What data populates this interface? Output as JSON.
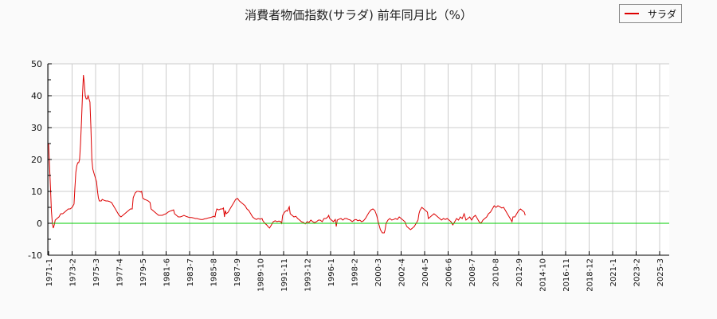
{
  "chart_data": {
    "type": "line",
    "title": "消費者物価指数(サラダ) 前年同月比（%）",
    "xlabel": "",
    "ylabel": "",
    "ylim": [
      -10,
      50
    ],
    "yticks": [
      50,
      40,
      30,
      20,
      10,
      0,
      -10
    ],
    "grid": true,
    "legend_position": "top-right",
    "x_start": "1971-1",
    "x_tick_labels": [
      "1971-1",
      "1973-2",
      "1975-3",
      "1977-4",
      "1979-5",
      "1981-6",
      "1983-7",
      "1985-8",
      "1987-9",
      "1989-10",
      "1991-11",
      "1993-12",
      "1996-1",
      "1998-2",
      "2000-3",
      "2002-4",
      "2004-5",
      "2006-6",
      "2008-7",
      "2010-8",
      "2012-9",
      "2014-10",
      "2016-11",
      "2018-12",
      "2021-1",
      "2023-2",
      "2025-3"
    ],
    "series": [
      {
        "name": "サラダ",
        "color": "#dd0000",
        "points": [
          [
            0,
            25
          ],
          [
            1,
            18
          ],
          [
            2,
            11
          ],
          [
            3,
            4
          ],
          [
            4,
            0
          ],
          [
            5,
            -1.5
          ],
          [
            6,
            -0.5
          ],
          [
            7,
            1
          ],
          [
            9,
            1.5
          ],
          [
            11,
            2
          ],
          [
            13,
            3
          ],
          [
            15,
            3
          ],
          [
            17,
            3.5
          ],
          [
            19,
            4
          ],
          [
            21,
            4.5
          ],
          [
            23,
            4.5
          ],
          [
            25,
            5
          ],
          [
            27,
            6
          ],
          [
            28,
            11
          ],
          [
            29,
            16
          ],
          [
            30,
            18
          ],
          [
            31,
            19
          ],
          [
            32,
            19
          ],
          [
            33,
            20
          ],
          [
            34,
            25
          ],
          [
            35,
            32
          ],
          [
            36,
            40
          ],
          [
            37,
            46.5
          ],
          [
            38,
            44
          ],
          [
            39,
            40
          ],
          [
            40,
            39
          ],
          [
            41,
            39
          ],
          [
            42,
            40
          ],
          [
            43,
            39
          ],
          [
            44,
            38
          ],
          [
            45,
            30
          ],
          [
            46,
            20
          ],
          [
            47,
            17
          ],
          [
            48,
            16
          ],
          [
            49,
            15
          ],
          [
            50,
            14
          ],
          [
            51,
            13
          ],
          [
            52,
            10
          ],
          [
            53,
            8
          ],
          [
            54,
            7
          ],
          [
            55,
            7
          ],
          [
            56,
            7
          ],
          [
            57,
            7.5
          ],
          [
            59,
            7.2
          ],
          [
            61,
            7
          ],
          [
            63,
            7
          ],
          [
            65,
            6.8
          ],
          [
            67,
            6.5
          ],
          [
            69,
            5.5
          ],
          [
            71,
            4.5
          ],
          [
            73,
            3.5
          ],
          [
            75,
            2.5
          ],
          [
            77,
            2
          ],
          [
            79,
            2.5
          ],
          [
            81,
            3
          ],
          [
            83,
            3.5
          ],
          [
            85,
            4
          ],
          [
            87,
            4.5
          ],
          [
            89,
            4.5
          ],
          [
            90,
            8
          ],
          [
            92,
            9.5
          ],
          [
            94,
            10
          ],
          [
            96,
            10
          ],
          [
            98,
            9.8
          ],
          [
            99,
            10
          ],
          [
            100,
            8
          ],
          [
            102,
            7.5
          ],
          [
            104,
            7.3
          ],
          [
            106,
            7
          ],
          [
            108,
            6.5
          ],
          [
            109,
            4.5
          ],
          [
            111,
            4
          ],
          [
            113,
            3.5
          ],
          [
            115,
            3
          ],
          [
            117,
            2.5
          ],
          [
            119,
            2.5
          ],
          [
            121,
            2.5
          ],
          [
            123,
            2.8
          ],
          [
            125,
            3
          ],
          [
            127,
            3.5
          ],
          [
            129,
            3.8
          ],
          [
            131,
            4
          ],
          [
            133,
            4.2
          ],
          [
            134,
            3
          ],
          [
            136,
            2.5
          ],
          [
            138,
            2
          ],
          [
            140,
            2
          ],
          [
            142,
            2.2
          ],
          [
            144,
            2.5
          ],
          [
            146,
            2.2
          ],
          [
            148,
            2
          ],
          [
            150,
            1.8
          ],
          [
            152,
            1.8
          ],
          [
            154,
            1.7
          ],
          [
            156,
            1.5
          ],
          [
            158,
            1.5
          ],
          [
            160,
            1.3
          ],
          [
            162,
            1.2
          ],
          [
            164,
            1.2
          ],
          [
            166,
            1.4
          ],
          [
            168,
            1.5
          ],
          [
            170,
            1.7
          ],
          [
            172,
            1.8
          ],
          [
            174,
            2
          ],
          [
            176,
            2.2
          ],
          [
            177,
            2
          ],
          [
            178,
            3.5
          ],
          [
            179,
            4.5
          ],
          [
            181,
            4.2
          ],
          [
            183,
            4.5
          ],
          [
            185,
            4.5
          ],
          [
            186,
            4.8
          ],
          [
            187,
            2
          ],
          [
            188,
            4
          ],
          [
            189,
            3
          ],
          [
            191,
            3.5
          ],
          [
            193,
            4.5
          ],
          [
            195,
            5.5
          ],
          [
            197,
            6.5
          ],
          [
            199,
            7.5
          ],
          [
            201,
            7.8
          ],
          [
            203,
            7
          ],
          [
            205,
            6.5
          ],
          [
            207,
            6
          ],
          [
            209,
            5.5
          ],
          [
            211,
            4.5
          ],
          [
            213,
            4
          ],
          [
            215,
            3
          ],
          [
            217,
            2
          ],
          [
            219,
            1.5
          ],
          [
            221,
            1.2
          ],
          [
            223,
            1.5
          ],
          [
            225,
            1.3
          ],
          [
            227,
            1.5
          ],
          [
            228,
            0.8
          ],
          [
            230,
            0
          ],
          [
            232,
            -0.5
          ],
          [
            234,
            -1.2
          ],
          [
            235,
            -1.5
          ],
          [
            237,
            -0.5
          ],
          [
            239,
            0.5
          ],
          [
            241,
            0.8
          ],
          [
            243,
            0.5
          ],
          [
            245,
            0.7
          ],
          [
            247,
            0.5
          ],
          [
            248,
            0
          ],
          [
            249,
            2.5
          ],
          [
            251,
            3.5
          ],
          [
            253,
            4
          ],
          [
            254,
            3.8
          ],
          [
            255,
            4.5
          ],
          [
            256,
            5.2
          ],
          [
            257,
            3
          ],
          [
            259,
            2.5
          ],
          [
            261,
            2
          ],
          [
            263,
            2.2
          ],
          [
            265,
            1.5
          ],
          [
            267,
            1
          ],
          [
            269,
            0.5
          ],
          [
            271,
            0.3
          ],
          [
            273,
            -0.2
          ],
          [
            275,
            0.5
          ],
          [
            277,
            0.3
          ],
          [
            279,
            1
          ],
          [
            281,
            0.5
          ],
          [
            283,
            0.2
          ],
          [
            285,
            0.5
          ],
          [
            287,
            1
          ],
          [
            289,
            1
          ],
          [
            291,
            0.5
          ],
          [
            293,
            1.5
          ],
          [
            295,
            1.5
          ],
          [
            297,
            2
          ],
          [
            298,
            2.5
          ],
          [
            299,
            1.5
          ],
          [
            301,
            1
          ],
          [
            303,
            0.5
          ],
          [
            305,
            1.2
          ],
          [
            306,
            -1
          ],
          [
            307,
            1
          ],
          [
            309,
            1.3
          ],
          [
            311,
            1.5
          ],
          [
            313,
            1
          ],
          [
            315,
            1.5
          ],
          [
            317,
            1.5
          ],
          [
            319,
            1.2
          ],
          [
            321,
            1
          ],
          [
            323,
            0.5
          ],
          [
            325,
            1
          ],
          [
            327,
            1.2
          ],
          [
            329,
            0.8
          ],
          [
            331,
            1
          ],
          [
            333,
            0.5
          ],
          [
            335,
            0.8
          ],
          [
            337,
            1.5
          ],
          [
            339,
            2.5
          ],
          [
            341,
            3.5
          ],
          [
            343,
            4.2
          ],
          [
            345,
            4.5
          ],
          [
            347,
            4
          ],
          [
            349,
            2.5
          ],
          [
            351,
            0
          ],
          [
            353,
            -2
          ],
          [
            355,
            -3
          ],
          [
            357,
            -3
          ],
          [
            358,
            -2
          ],
          [
            359,
            0
          ],
          [
            361,
            1
          ],
          [
            363,
            1.5
          ],
          [
            365,
            1
          ],
          [
            367,
            1.2
          ],
          [
            369,
            1.5
          ],
          [
            371,
            1.2
          ],
          [
            373,
            2
          ],
          [
            375,
            1.5
          ],
          [
            377,
            1
          ],
          [
            379,
            0.5
          ],
          [
            381,
            -1
          ],
          [
            383,
            -1.5
          ],
          [
            385,
            -2
          ],
          [
            387,
            -1.5
          ],
          [
            389,
            -1
          ],
          [
            391,
            0
          ],
          [
            393,
            1
          ],
          [
            394,
            3
          ],
          [
            395,
            4
          ],
          [
            397,
            5
          ],
          [
            399,
            4.5
          ],
          [
            401,
            4
          ],
          [
            403,
            3.5
          ],
          [
            404,
            1.5
          ],
          [
            406,
            2
          ],
          [
            408,
            2.5
          ],
          [
            410,
            3
          ],
          [
            412,
            2.5
          ],
          [
            414,
            2
          ],
          [
            416,
            1.5
          ],
          [
            418,
            1
          ],
          [
            420,
            1.5
          ],
          [
            422,
            1.2
          ],
          [
            424,
            1.5
          ],
          [
            426,
            1
          ],
          [
            428,
            0.5
          ],
          [
            430,
            -0.5
          ],
          [
            432,
            0.5
          ],
          [
            434,
            1.5
          ],
          [
            436,
            1
          ],
          [
            438,
            2
          ],
          [
            440,
            1.5
          ],
          [
            442,
            3
          ],
          [
            444,
            1
          ],
          [
            446,
            1.5
          ],
          [
            448,
            2
          ],
          [
            450,
            1
          ],
          [
            452,
            2
          ],
          [
            454,
            2.5
          ],
          [
            456,
            1.5
          ],
          [
            458,
            0.5
          ],
          [
            460,
            0
          ],
          [
            462,
            1
          ],
          [
            464,
            1.5
          ],
          [
            466,
            2
          ],
          [
            468,
            3
          ],
          [
            470,
            3.5
          ],
          [
            472,
            4.5
          ],
          [
            474,
            5.5
          ],
          [
            476,
            5
          ],
          [
            478,
            5.5
          ],
          [
            480,
            5.2
          ],
          [
            482,
            4.8
          ],
          [
            484,
            5
          ],
          [
            486,
            4
          ],
          [
            488,
            3
          ],
          [
            490,
            2
          ],
          [
            492,
            1
          ],
          [
            493,
            0.5
          ],
          [
            494,
            2
          ],
          [
            496,
            2
          ],
          [
            498,
            3
          ],
          [
            500,
            4
          ],
          [
            502,
            4.5
          ],
          [
            504,
            4
          ],
          [
            506,
            3.5
          ],
          [
            507,
            2.5
          ]
        ]
      },
      {
        "name": "zero-line",
        "color": "#00cc00",
        "points": [
          [
            0,
            0
          ],
          [
            663,
            0
          ]
        ]
      }
    ]
  },
  "legend": {
    "label": "サラダ"
  }
}
